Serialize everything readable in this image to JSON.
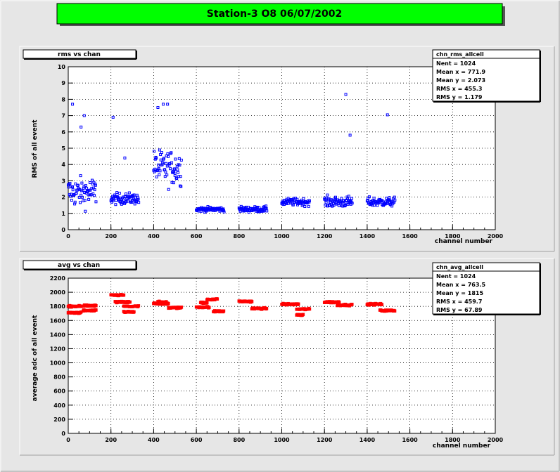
{
  "page_title": "Station-3 O8 06/07/2002",
  "colors": {
    "background": "#e6e6e6",
    "title_box": "#00ff00",
    "frame": "#ffffff",
    "rms_marker": "#0000ff",
    "avg_marker": "#ff0000"
  },
  "chart_data": [
    {
      "type": "scatter",
      "title": "rms vs chan",
      "xlabel": "channel number",
      "ylabel": "RMS of all event",
      "xlim": [
        0,
        2000
      ],
      "ylim": [
        0,
        10
      ],
      "x_ticks": [
        "0",
        "200",
        "400",
        "600",
        "800",
        "1000",
        "1200",
        "1400",
        "1600",
        "1800",
        "2000"
      ],
      "y_ticks": [
        "0",
        "1",
        "2",
        "3",
        "4",
        "5",
        "6",
        "7",
        "8",
        "9",
        "10"
      ],
      "grid": true,
      "marker": "open-square",
      "stats": {
        "name": "chn_rms_allcell",
        "rows": [
          {
            "label": "Nent",
            "value": "1024"
          },
          {
            "label": "Mean x",
            "value": "771.9"
          },
          {
            "label": "Mean y",
            "value": "2.073"
          },
          {
            "label": "RMS x",
            "value": "455.3"
          },
          {
            "label": "RMS y",
            "value": "1.179"
          }
        ]
      },
      "clusters": [
        {
          "x": [
            0,
            130
          ],
          "y_center": 2.3,
          "y_spread": 1.6
        },
        {
          "x": [
            200,
            330
          ],
          "y_center": 1.9,
          "y_spread": 0.6
        },
        {
          "x": [
            400,
            530
          ],
          "y_center": 3.8,
          "y_spread": 1.9
        },
        {
          "x": [
            600,
            730
          ],
          "y_center": 1.25,
          "y_spread": 0.25
        },
        {
          "x": [
            800,
            930
          ],
          "y_center": 1.25,
          "y_spread": 0.3
        },
        {
          "x": [
            1000,
            1130
          ],
          "y_center": 1.7,
          "y_spread": 0.4
        },
        {
          "x": [
            1200,
            1330
          ],
          "y_center": 1.7,
          "y_spread": 0.6
        },
        {
          "x": [
            1400,
            1530
          ],
          "y_center": 1.7,
          "y_spread": 0.5
        }
      ],
      "outliers": [
        {
          "x": 20,
          "y": 7.7
        },
        {
          "x": 60,
          "y": 6.3
        },
        {
          "x": 75,
          "y": 7.0
        },
        {
          "x": 210,
          "y": 6.9
        },
        {
          "x": 265,
          "y": 4.4
        },
        {
          "x": 420,
          "y": 7.5
        },
        {
          "x": 445,
          "y": 7.7
        },
        {
          "x": 465,
          "y": 7.7
        },
        {
          "x": 1300,
          "y": 8.3
        },
        {
          "x": 1320,
          "y": 5.8
        },
        {
          "x": 1495,
          "y": 7.05
        }
      ]
    },
    {
      "type": "scatter",
      "title": "avg vs chan",
      "xlabel": "channel number",
      "ylabel": "average adc of all event",
      "xlim": [
        0,
        2000
      ],
      "ylim": [
        0,
        2200
      ],
      "x_ticks": [
        "0",
        "200",
        "400",
        "600",
        "800",
        "1000",
        "1200",
        "1400",
        "1600",
        "1800",
        "2000"
      ],
      "y_ticks": [
        "0",
        "200",
        "400",
        "600",
        "800",
        "1000",
        "1200",
        "1400",
        "1600",
        "1800",
        "2000",
        "2200"
      ],
      "grid": true,
      "marker": "filled-square",
      "stats": {
        "name": "chn_avg_allcell",
        "rows": [
          {
            "label": "Nent",
            "value": "1024"
          },
          {
            "label": "Mean x",
            "value": "763.5"
          },
          {
            "label": "Mean y",
            "value": "1815"
          },
          {
            "label": "RMS x",
            "value": "459.7"
          },
          {
            "label": "RMS y",
            "value": "67.89"
          }
        ]
      },
      "groups": [
        {
          "x": [
            0,
            60
          ],
          "y": 1800
        },
        {
          "x": [
            0,
            60
          ],
          "y": 1710
        },
        {
          "x": [
            70,
            130
          ],
          "y": 1810
        },
        {
          "x": [
            70,
            130
          ],
          "y": 1740
        },
        {
          "x": [
            200,
            260
          ],
          "y": 1960
        },
        {
          "x": [
            220,
            290
          ],
          "y": 1860
        },
        {
          "x": [
            260,
            330
          ],
          "y": 1800
        },
        {
          "x": [
            260,
            310
          ],
          "y": 1720
        },
        {
          "x": [
            400,
            470
          ],
          "y": 1840
        },
        {
          "x": [
            420,
            460
          ],
          "y": 1860
        },
        {
          "x": [
            470,
            530
          ],
          "y": 1780
        },
        {
          "x": [
            600,
            660
          ],
          "y": 1790
        },
        {
          "x": [
            620,
            650
          ],
          "y": 1850
        },
        {
          "x": [
            650,
            700
          ],
          "y": 1900
        },
        {
          "x": [
            680,
            730
          ],
          "y": 1730
        },
        {
          "x": [
            800,
            860
          ],
          "y": 1870
        },
        {
          "x": [
            860,
            930
          ],
          "y": 1770
        },
        {
          "x": [
            1000,
            1080
          ],
          "y": 1830
        },
        {
          "x": [
            1070,
            1130
          ],
          "y": 1760
        },
        {
          "x": [
            1070,
            1100
          ],
          "y": 1680
        },
        {
          "x": [
            1200,
            1270
          ],
          "y": 1860
        },
        {
          "x": [
            1260,
            1330
          ],
          "y": 1820
        },
        {
          "x": [
            1400,
            1470
          ],
          "y": 1830
        },
        {
          "x": [
            1460,
            1530
          ],
          "y": 1740
        }
      ]
    }
  ]
}
